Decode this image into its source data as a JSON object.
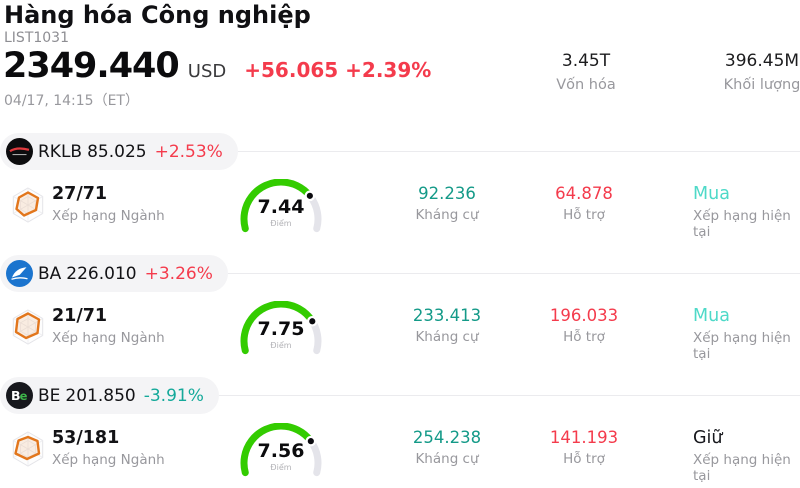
{
  "header": {
    "title": "Hàng hóa Công nghiệp",
    "list_id": "LIST1031",
    "price": "2349.440",
    "currency": "USD",
    "change": "+56.065 +2.39%",
    "datetime": "04/17, 14:15（ET）",
    "market_cap": {
      "value": "3.45T",
      "label": "Vốn hóa"
    },
    "volume": {
      "value": "396.45M",
      "label": "Khối lượng"
    }
  },
  "labels": {
    "rank": "Xếp hạng Ngành",
    "score": "Điểm",
    "resistance": "Kháng cự",
    "support": "Hỗ trợ",
    "rating": "Xếp hạng hiện tại"
  },
  "colors": {
    "up": "#f43b4c",
    "down": "#15a99a",
    "resistance": "#149a88",
    "support": "#f43b4c",
    "buy": "#4ed9c8",
    "hold": "#17181d",
    "gauge": "#33cc00",
    "track": "#e4e4ea",
    "radar": "#e2761c",
    "pill_bg": "#f4f4f6",
    "divider": "#ebebee"
  },
  "gauge_scale": {
    "min": 0,
    "max": 10,
    "arc_degrees": 210
  },
  "rows": [
    {
      "ticker": "RKLB",
      "price": "85.025",
      "change": "+2.53%",
      "change_dir": "up",
      "logo": "rklb-logo",
      "rank": "27/71",
      "score": "7.44",
      "resistance": "92.236",
      "support": "64.878",
      "rating": "Mua",
      "rating_type": "buy"
    },
    {
      "ticker": "BA",
      "price": "226.010",
      "change": "+3.26%",
      "change_dir": "up",
      "logo": "ba-logo",
      "rank": "21/71",
      "score": "7.75",
      "resistance": "233.413",
      "support": "196.033",
      "rating": "Mua",
      "rating_type": "buy"
    },
    {
      "ticker": "BE",
      "price": "201.850",
      "change": "-3.91%",
      "change_dir": "down",
      "logo": "be-logo",
      "rank": "53/181",
      "score": "7.56",
      "resistance": "254.238",
      "support": "141.193",
      "rating": "Giữ",
      "rating_type": "hold"
    }
  ]
}
